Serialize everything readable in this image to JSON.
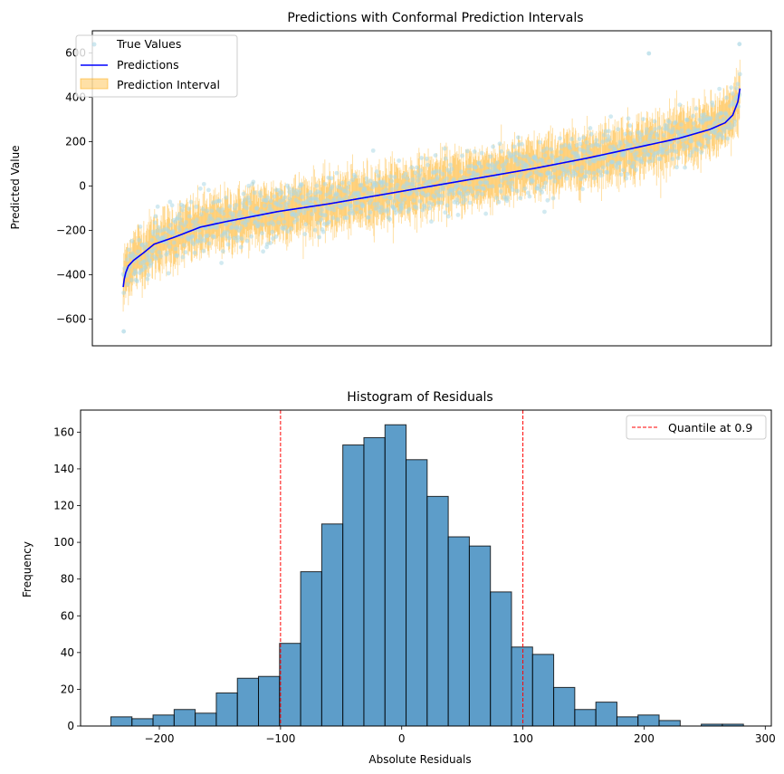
{
  "chart_data": [
    {
      "type": "line",
      "title": "Predictions with Conformal Prediction Intervals",
      "xlabel": "",
      "ylabel": "Predicted Value",
      "xlim": [
        -60,
        1260
      ],
      "ylim": [
        -720,
        700
      ],
      "x_ticks_visible": false,
      "y_ticks": [
        -600,
        -400,
        -200,
        0,
        200,
        400,
        600
      ],
      "y_tick_labels": [
        "−600",
        "−400",
        "−200",
        "0",
        "200",
        "400",
        "600"
      ],
      "n_points": 1200,
      "interval_halfwidth": 99,
      "grid": false,
      "legend_position": "upper left",
      "series": [
        {
          "name": "True Values",
          "kind": "scatter",
          "color": "#add8e6"
        },
        {
          "name": "Predictions",
          "kind": "line",
          "color": "#0000ff",
          "x": [
            0,
            2,
            5,
            10,
            20,
            40,
            60,
            100,
            150,
            200,
            300,
            400,
            500,
            600,
            700,
            800,
            900,
            1000,
            1080,
            1140,
            1170,
            1185,
            1195,
            1199
          ],
          "y": [
            -455,
            -420,
            -390,
            -360,
            -335,
            -300,
            -262,
            -230,
            -185,
            -160,
            -115,
            -80,
            -40,
            0,
            40,
            80,
            125,
            175,
            215,
            255,
            285,
            320,
            380,
            440
          ]
        },
        {
          "name": "Prediction Interval",
          "kind": "fill",
          "color": "#ffa500"
        }
      ],
      "outlier_points": [
        {
          "x": 1022,
          "y": 598
        },
        {
          "x": 1198,
          "y": 640
        },
        {
          "x": 1,
          "y": -655
        }
      ]
    },
    {
      "type": "bar",
      "title": "Histogram of Residuals",
      "xlabel": "Absolute Residuals",
      "ylabel": "Frequency",
      "xlim": [
        -265,
        305
      ],
      "ylim": [
        0,
        172
      ],
      "x_ticks": [
        -200,
        -100,
        0,
        100,
        200,
        300
      ],
      "x_tick_labels": [
        "−200",
        "−100",
        "0",
        "100",
        "200",
        "300"
      ],
      "y_ticks": [
        0,
        20,
        40,
        60,
        80,
        100,
        120,
        140,
        160
      ],
      "bin_start": -240,
      "bin_width": 17.4,
      "values": [
        5,
        4,
        6,
        9,
        7,
        18,
        26,
        27,
        45,
        84,
        110,
        153,
        157,
        164,
        145,
        125,
        103,
        98,
        73,
        43,
        39,
        21,
        9,
        13,
        5,
        6,
        3,
        0,
        1,
        1
      ],
      "bar_color": "#1f77b4",
      "quantile_lines": [
        -100,
        100
      ],
      "legend": [
        {
          "name": "Quantile at 0.9",
          "style": "dashed",
          "color": "#ff0000"
        }
      ],
      "legend_position": "upper right",
      "grid": false
    }
  ]
}
